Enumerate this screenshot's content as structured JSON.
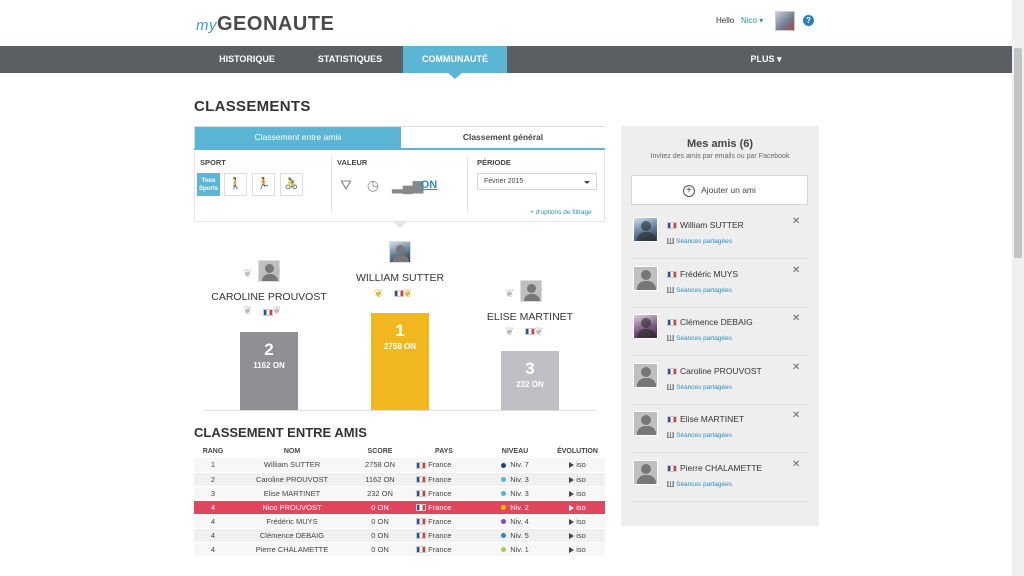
{
  "header": {
    "logo_prefix": "my",
    "logo_brand": "GEONAUTE",
    "hello": "Hello",
    "user_name": "Nico ▾",
    "help": "?"
  },
  "nav": {
    "items": [
      "HISTORIQUE",
      "STATISTIQUES",
      "COMMUNAUTÉ"
    ],
    "more": "PLUS ▾",
    "active": "COMMUNAUTÉ"
  },
  "page_title": "CLASSEMENTS",
  "tabs": {
    "friends": "Classement entre amis",
    "general": "Classement général"
  },
  "filters": {
    "sport_label": "SPORT",
    "sport_active": "Tous Sports",
    "sport_icons": [
      "walking-icon",
      "running-icon",
      "cycling-icon"
    ],
    "value_label": "VALEUR",
    "value_icons": [
      "distance-icon",
      "clock-icon",
      "bars-icon"
    ],
    "value_on": "ON",
    "period_label": "PÉRIODE",
    "period_value": "Février 2015",
    "more_options": "+ d'options de filtrage"
  },
  "podium": [
    {
      "name": "CAROLINE PROUVOST",
      "rank": "2",
      "score": "1162 ON",
      "value": 1162,
      "medal": "silver"
    },
    {
      "name": "WILLIAM SUTTER",
      "rank": "1",
      "score": "2758 ON",
      "value": 2758,
      "medal": "gold"
    },
    {
      "name": "ELISE MARTINET",
      "rank": "3",
      "score": "232 ON",
      "value": 232,
      "medal": "silver"
    }
  ],
  "ranking": {
    "title": "CLASSEMENT ENTRE AMIS",
    "columns": [
      "RANG",
      "NOM",
      "SCORE",
      "PAYS",
      "NIVEAU",
      "ÉVOLUTION"
    ],
    "rows": [
      {
        "rank": "1",
        "name": "William SUTTER",
        "score": "2758 ON",
        "country": "France",
        "level": "Niv. 7",
        "dot": "#23407a",
        "evolution": "iso"
      },
      {
        "rank": "2",
        "name": "Caroline PROUVOST",
        "score": "1162 ON",
        "country": "France",
        "level": "Niv. 3",
        "dot": "#4ab8e0",
        "evolution": "iso"
      },
      {
        "rank": "3",
        "name": "Elise MARTINET",
        "score": "232 ON",
        "country": "France",
        "level": "Niv. 3",
        "dot": "#4ab8e0",
        "evolution": "iso"
      },
      {
        "rank": "4",
        "name": "Nico PROUVOST",
        "score": "0 ON",
        "country": "France",
        "level": "Niv. 2",
        "dot": "#f2c200",
        "evolution": "iso",
        "me": true
      },
      {
        "rank": "4",
        "name": "Frédéric MUYS",
        "score": "0 ON",
        "country": "France",
        "level": "Niv. 4",
        "dot": "#7a4ac2",
        "evolution": "iso"
      },
      {
        "rank": "4",
        "name": "Clémence DEBAIG",
        "score": "0 ON",
        "country": "France",
        "level": "Niv. 5",
        "dot": "#3a7ec2",
        "evolution": "iso"
      },
      {
        "rank": "4",
        "name": "Pierre CHALAMETTE",
        "score": "0 ON",
        "country": "France",
        "level": "Niv. 1",
        "dot": "#a4d23a",
        "evolution": "iso"
      }
    ]
  },
  "friends": {
    "title": "Mes amis (6)",
    "subtitle": "Invitez des amis par emails ou par Facebook",
    "add_button": "Ajouter un ami",
    "shared_label": "Séances partagées",
    "list": [
      {
        "name": "William SUTTER",
        "avatar": "photo1"
      },
      {
        "name": "Frédéric MUYS",
        "avatar": "default"
      },
      {
        "name": "Clémence DEBAIG",
        "avatar": "photo2"
      },
      {
        "name": "Caroline PROUVOST",
        "avatar": "default"
      },
      {
        "name": "Elise MARTINET",
        "avatar": "default"
      },
      {
        "name": "Pierre CHALAMETTE",
        "avatar": "default"
      }
    ]
  },
  "colors": {
    "accent": "#5bb6d6",
    "nav_bg": "#5b5f63",
    "gold": "#f0b81e",
    "silver": "#8e9094",
    "bronze": "#bfc0c3",
    "me_row": "#e0475e",
    "link": "#2a8ec2"
  }
}
